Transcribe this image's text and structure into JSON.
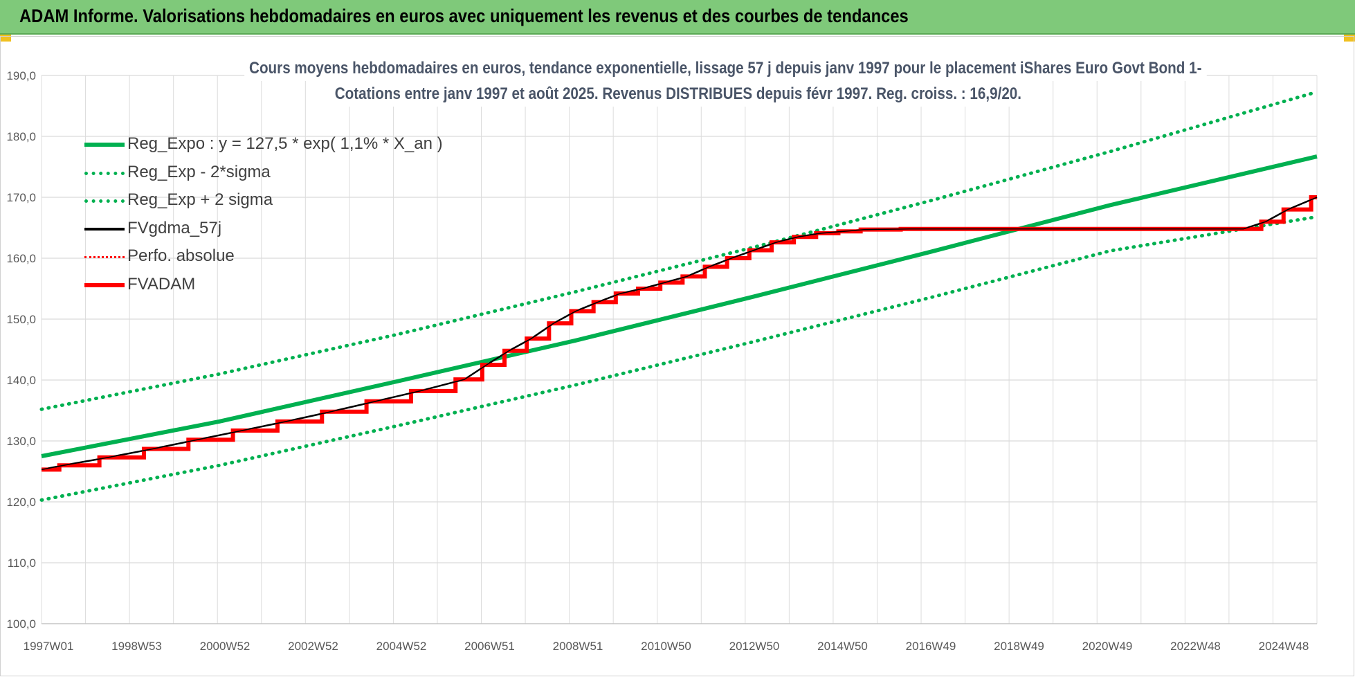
{
  "banner": {
    "title": "ADAM Informe. Valorisations hebdomadaires en euros avec uniquement les revenus et des courbes de tendances"
  },
  "chart_data": {
    "type": "line",
    "title_line1": "Cours moyens hebdomadaires en euros, tendance exponentielle, lissage 57 j depuis janv 1997 pour le placement iShares Euro Govt Bond 1-",
    "title_line2": "Cotations entre janv 1997 et août 2025. Revenus DISTRIBUES depuis févr 1997. Reg. croiss. : 16,9/20.",
    "xlabel": "",
    "ylabel": "",
    "ylim": [
      100,
      190
    ],
    "yticks": [
      "100,0",
      "110,0",
      "120,0",
      "130,0",
      "140,0",
      "150,0",
      "160,0",
      "170,0",
      "180,0",
      "190,0"
    ],
    "xticks": [
      "1997W01",
      "1998W53",
      "2000W52",
      "2002W52",
      "2004W52",
      "2006W51",
      "2008W51",
      "2010W50",
      "2012W50",
      "2014W50",
      "2016W49",
      "2018W49",
      "2020W49",
      "2022W48",
      "2024W48"
    ],
    "x_range_years": [
      1997.0,
      2025.65
    ],
    "grid": true,
    "legend_position": "top-left",
    "colors": {
      "green": "#00b050",
      "red": "#ff0000",
      "black": "#000000"
    },
    "series": [
      {
        "name": "Reg_Expo : y = 127,5 * exp( 1,1% *  X_an )",
        "style": "solid",
        "color": "#00b050",
        "x": [
          1997.0,
          2001.0,
          2005.0,
          2009.0,
          2013.0,
          2017.0,
          2021.0,
          2025.65
        ],
        "y": [
          127.5,
          133.2,
          139.8,
          146.5,
          153.7,
          161.1,
          168.7,
          176.7
        ]
      },
      {
        "name": "Reg_Exp - 2*sigma",
        "style": "dotted",
        "color": "#00b050",
        "x": [
          1997.0,
          2001.0,
          2005.0,
          2009.0,
          2013.0,
          2017.0,
          2021.0,
          2025.65
        ],
        "y": [
          120.3,
          126.0,
          132.5,
          139.2,
          146.3,
          153.6,
          161.2,
          166.8
        ]
      },
      {
        "name": "Reg_Exp + 2 sigma",
        "style": "dotted",
        "color": "#00b050",
        "x": [
          1997.0,
          2001.0,
          2005.0,
          2009.0,
          2013.0,
          2017.0,
          2021.0,
          2025.65
        ],
        "y": [
          135.2,
          141.0,
          147.5,
          154.5,
          161.8,
          169.5,
          177.5,
          187.3
        ]
      },
      {
        "name": "FVgdma_57j",
        "style": "solid",
        "color": "#000000",
        "x": [
          1997.0,
          1997.5,
          1998.5,
          1999.5,
          2000.5,
          2001.5,
          2002.5,
          2003.5,
          2004.5,
          2005.5,
          2006.5,
          2007.0,
          2007.5,
          2008.0,
          2008.5,
          2009.0,
          2009.5,
          2010.0,
          2010.5,
          2011.0,
          2011.5,
          2012.0,
          2012.5,
          2013.0,
          2013.5,
          2014.0,
          2014.5,
          2015.0,
          2015.5,
          2016.5,
          2018.0,
          2020.0,
          2022.0,
          2024.0,
          2024.5,
          2025.0,
          2025.65
        ],
        "y": [
          125.3,
          126.0,
          127.3,
          128.7,
          130.2,
          131.7,
          133.2,
          134.8,
          136.5,
          138.2,
          140.1,
          142.5,
          144.8,
          146.8,
          149.3,
          151.3,
          152.8,
          154.2,
          155.0,
          156.0,
          157.0,
          158.6,
          160.0,
          161.3,
          162.6,
          163.5,
          164.1,
          164.4,
          164.7,
          164.8,
          164.8,
          164.8,
          164.8,
          164.8,
          166.0,
          168.0,
          170.0
        ]
      },
      {
        "name": "Perfo. absolue",
        "style": "dotted",
        "color": "#ff0000",
        "x": [],
        "y": []
      },
      {
        "name": "FVADAM",
        "style": "step",
        "color": "#ff0000",
        "x": [
          1997.0,
          1997.5,
          1998.5,
          1999.5,
          2000.5,
          2001.5,
          2002.5,
          2003.5,
          2004.5,
          2005.5,
          2006.5,
          2007.0,
          2007.5,
          2008.0,
          2008.5,
          2009.0,
          2009.5,
          2010.0,
          2010.5,
          2011.0,
          2011.5,
          2012.0,
          2012.5,
          2013.0,
          2013.5,
          2014.0,
          2014.5,
          2015.0,
          2015.5,
          2016.5,
          2018.0,
          2020.0,
          2022.0,
          2024.0,
          2024.5,
          2025.0,
          2025.65
        ],
        "y": [
          125.3,
          126.0,
          127.3,
          128.7,
          130.2,
          131.7,
          133.2,
          134.8,
          136.5,
          138.2,
          140.1,
          142.5,
          144.8,
          146.8,
          149.3,
          151.3,
          152.8,
          154.2,
          155.0,
          156.0,
          157.0,
          158.6,
          160.0,
          161.3,
          162.6,
          163.5,
          164.1,
          164.4,
          164.7,
          164.8,
          164.8,
          164.8,
          164.8,
          164.8,
          166.0,
          168.0,
          170.0
        ]
      }
    ]
  }
}
